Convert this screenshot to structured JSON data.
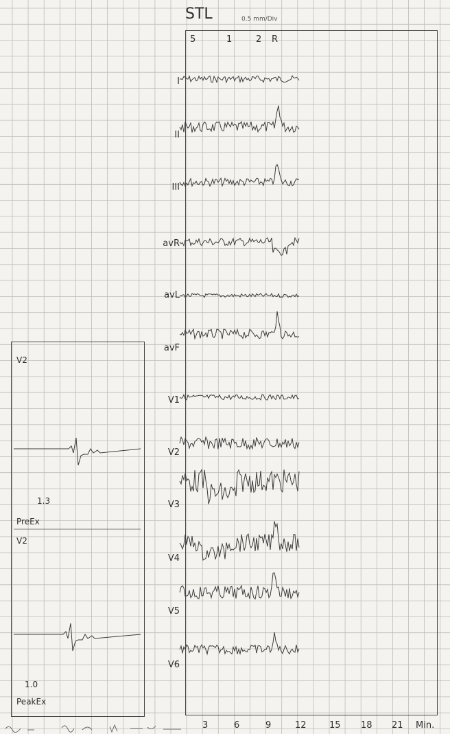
{
  "chart_data": {
    "type": "line",
    "title": "STL",
    "scale_note": "0.5 mm/Div",
    "column_markers": [
      "5",
      "1",
      "2",
      "R"
    ],
    "leads": [
      "I",
      "II",
      "III",
      "avR",
      "avL",
      "avF",
      "V1",
      "V2",
      "V3",
      "V4",
      "V5",
      "V6"
    ],
    "x_ticks": [
      "3",
      "6",
      "9",
      "12",
      "15",
      "18",
      "21"
    ],
    "x_unit": "Min.",
    "grid": true
  },
  "inset": {
    "lead_top": "V2",
    "value_top": "1.3",
    "label_top": "PreEx",
    "lead_bottom": "V2",
    "value_bottom": "1.0",
    "label_bottom": "PeakEx"
  },
  "colors": {
    "paper": "#f4f3ef",
    "grid": "#bdbdb8",
    "ink": "#3a3a3a"
  }
}
